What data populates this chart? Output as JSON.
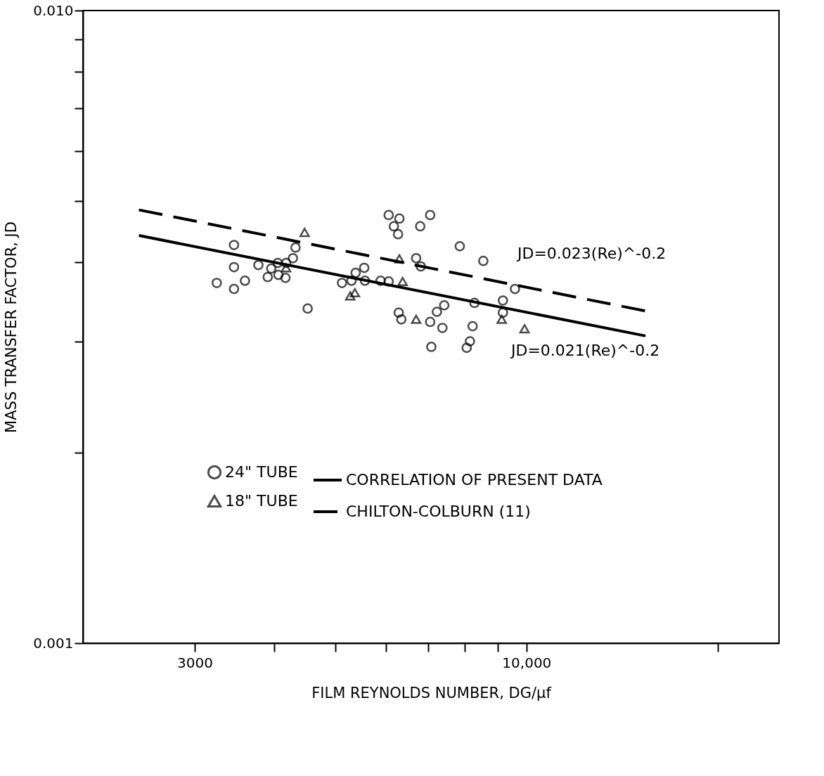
{
  "chart_data": {
    "type": "scatter",
    "xlabel": "FILM REYNOLDS NUMBER, DG/μf",
    "ylabel": "MASS TRANSFER FACTOR, JD",
    "log": "xy",
    "grid": false,
    "legend": "bottom left",
    "xlim": [
      2000,
      25000
    ],
    "xticks": [
      {
        "value": 3000,
        "label": "3000"
      },
      {
        "value": 4000,
        "label": null
      },
      {
        "value": 5000,
        "label": null
      },
      {
        "value": 6000,
        "label": null
      },
      {
        "value": 7000,
        "label": null
      },
      {
        "value": 8000,
        "label": null
      },
      {
        "value": 9000,
        "label": null
      },
      {
        "value": 10000,
        "label": "10,000"
      },
      {
        "value": 20000,
        "label": null
      }
    ],
    "ylim": [
      0.001,
      0.01
    ],
    "yticks": [
      {
        "value": 0.001,
        "label": "0.001"
      },
      {
        "value": 0.002,
        "label": null
      },
      {
        "value": 0.003,
        "label": null
      },
      {
        "value": 0.004,
        "label": null
      },
      {
        "value": 0.005,
        "label": null
      },
      {
        "value": 0.006,
        "label": null
      },
      {
        "value": 0.007,
        "label": null
      },
      {
        "value": 0.008,
        "label": null
      },
      {
        "value": 0.009,
        "label": null
      },
      {
        "value": 0.01,
        "label": "0.010"
      }
    ],
    "series": [
      {
        "name": "24\" TUBE",
        "marker": "circle",
        "color": "#000000",
        "x": [
          3460,
          3460,
          3250,
          3460,
          3600,
          3780,
          3910,
          3960,
          4055,
          4065,
          4180,
          4170,
          4285,
          4325,
          4520,
          5120,
          5300,
          5380,
          5550,
          5565,
          5890,
          6065,
          6065,
          6305,
          6180,
          6275,
          6800,
          6290,
          6350,
          7050,
          7850,
          8550,
          6700,
          6815,
          9590,
          8280,
          9180,
          9180,
          7420,
          7225,
          7050,
          7370,
          8225,
          8145,
          8050,
          7080
        ],
        "values": [
          0.00426,
          0.00393,
          0.00371,
          0.00363,
          0.00374,
          0.00396,
          0.00379,
          0.00391,
          0.00399,
          0.00382,
          0.00399,
          0.00378,
          0.00406,
          0.00422,
          0.00338,
          0.00371,
          0.00374,
          0.00385,
          0.00392,
          0.00374,
          0.00374,
          0.00373,
          0.00475,
          0.00469,
          0.00456,
          0.00443,
          0.00456,
          0.00333,
          0.00325,
          0.00475,
          0.00424,
          0.00402,
          0.00406,
          0.00394,
          0.00363,
          0.00345,
          0.00348,
          0.00333,
          0.00342,
          0.00334,
          0.00322,
          0.00315,
          0.00317,
          0.003,
          0.00293,
          0.00294
        ]
      },
      {
        "name": "18\" TUBE",
        "marker": "triangle",
        "color": "#000000",
        "x": [
          4470,
          4180,
          5275,
          5365,
          6305,
          6380,
          6700,
          9140,
          9930
        ],
        "values": [
          0.00446,
          0.00392,
          0.00354,
          0.00358,
          0.00405,
          0.00373,
          0.00325,
          0.00325,
          0.00314
        ]
      },
      {
        "name": "CORRELATION OF PRESENT DATA",
        "type": "line",
        "line_style": "solid",
        "color": "#000000",
        "x": [
          2450,
          15400
        ],
        "values": [
          0.00441,
          0.00306
        ]
      },
      {
        "name": "CHILTON-COLBURN (11)",
        "type": "line",
        "line_style": "dashed",
        "color": "#000000",
        "x": [
          2450,
          15400
        ],
        "values": [
          0.00484,
          0.00335
        ]
      }
    ],
    "annotations": [
      "JD=0.023(Re)^-0.2",
      "JD=0.021(Re)^-0.2"
    ]
  }
}
